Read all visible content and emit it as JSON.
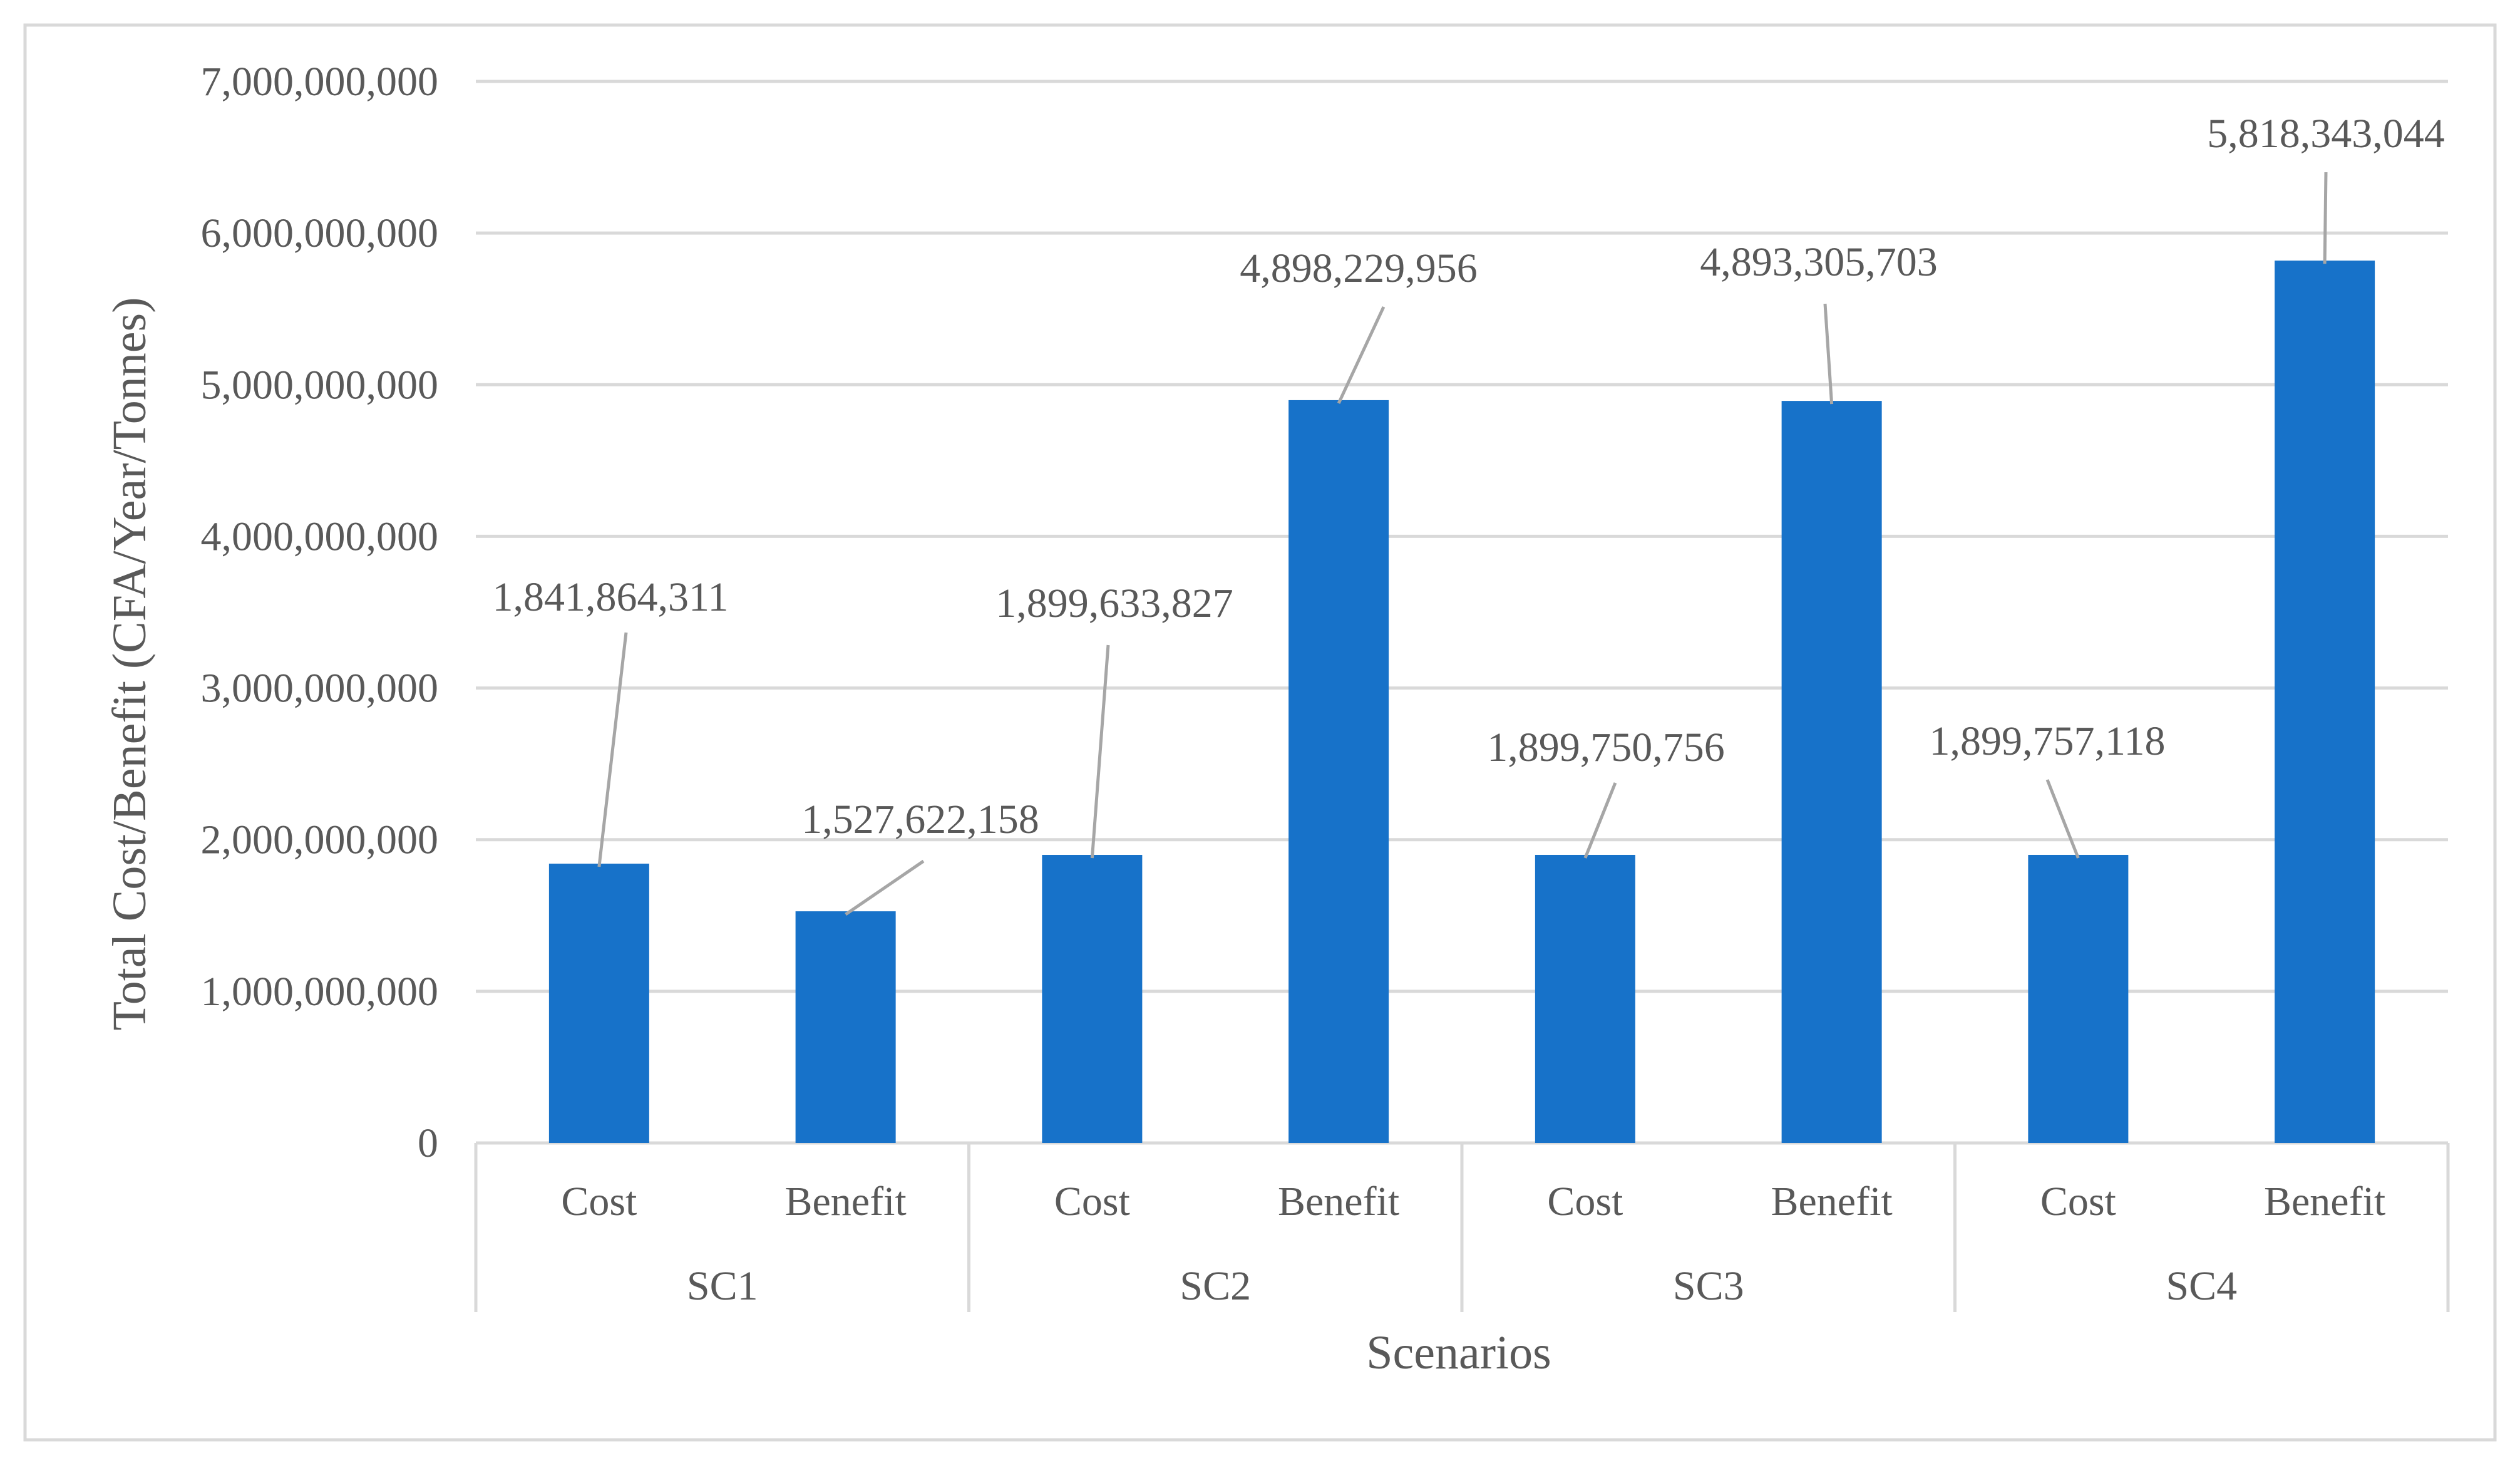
{
  "chart_data": {
    "type": "bar",
    "title": "",
    "xlabel": "Scenarios",
    "ylabel": "Total Cost/Benefit (CFA/Year/Tonnes)",
    "ylim": [
      0,
      7000000000
    ],
    "y_ticks": [
      0,
      1000000000,
      2000000000,
      3000000000,
      4000000000,
      5000000000,
      6000000000,
      7000000000
    ],
    "y_tick_labels": [
      "0",
      "1,000,000,000",
      "2,000,000,000",
      "3,000,000,000",
      "4,000,000,000",
      "5,000,000,000",
      "6,000,000,000",
      "7,000,000,000"
    ],
    "groups": [
      "SC1",
      "SC2",
      "SC3",
      "SC4"
    ],
    "categories": [
      "Cost",
      "Benefit",
      "Cost",
      "Benefit",
      "Cost",
      "Benefit",
      "Cost",
      "Benefit"
    ],
    "values": [
      1841864311,
      1527622158,
      1899633827,
      4898229956,
      1899750756,
      4893305703,
      1899757118,
      5818343044
    ],
    "data_labels": [
      "1,841,864,311",
      "1,527,622,158",
      "1,899,633,827",
      "4,898,229,956",
      "1,899,750,756",
      "4,893,305,703",
      "1,899,757,118",
      "5,818,343,044"
    ],
    "grid": true,
    "legend": "none",
    "bar_color": "#1772C9",
    "grid_color": "#D9D9D9",
    "text_color": "#595959",
    "leader_color": "#A6A6A6"
  }
}
